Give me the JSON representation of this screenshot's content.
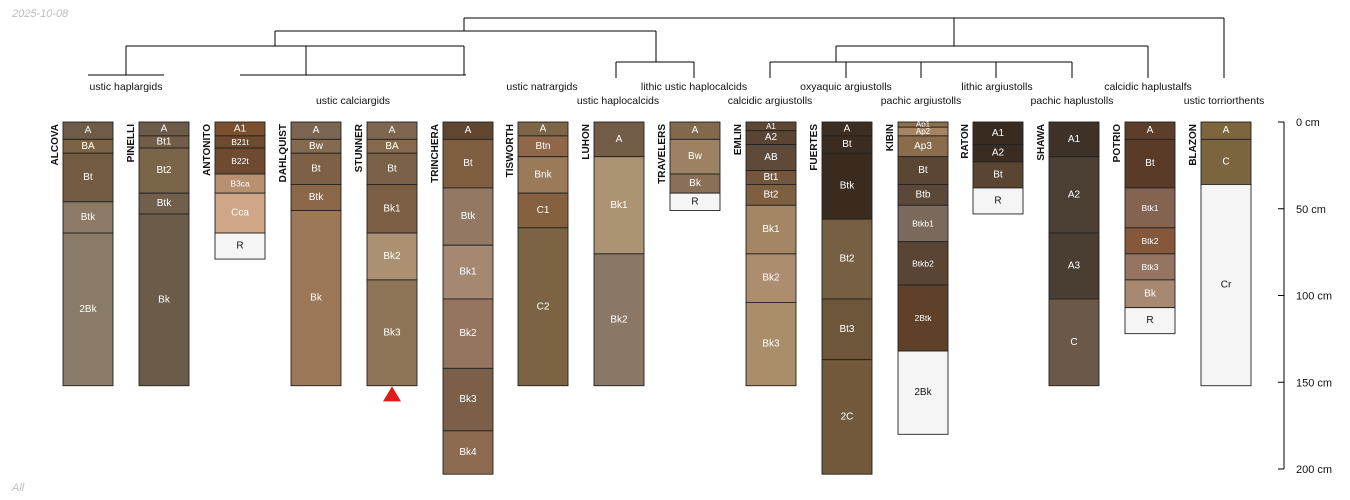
{
  "date_label": "2025-10-08",
  "footer_label": "All",
  "chart_data": {
    "type": "soil-profile-sketch",
    "title": "",
    "depth_unit": "cm",
    "depth_range": [
      0,
      200
    ],
    "depth_ticks": [
      {
        "value": 0,
        "label": "0 cm"
      },
      {
        "value": 50,
        "label": "50 cm"
      },
      {
        "value": 100,
        "label": "100 cm"
      },
      {
        "value": 150,
        "label": "150 cm"
      },
      {
        "value": 200,
        "label": "200 cm"
      }
    ],
    "taxonomy_labels": [
      {
        "text": "ustic haplargids"
      },
      {
        "text": "ustic calciargids"
      },
      {
        "text": "ustic natrargids"
      },
      {
        "text": "ustic haplocalcids"
      },
      {
        "text": "lithic ustic haplocalcids"
      },
      {
        "text": "calcidic argiustolls"
      },
      {
        "text": "oxyaquic argiustolls"
      },
      {
        "text": "pachic argiustolls"
      },
      {
        "text": "lithic argiustolls"
      },
      {
        "text": "pachic haplustolls"
      },
      {
        "text": "calcidic haplustalfs"
      },
      {
        "text": "ustic torriorthents"
      }
    ],
    "profiles": [
      {
        "name": "ALCOVA",
        "horizons": [
          {
            "name": "A",
            "top": 0,
            "bottom": 10,
            "color": "#6e5b48"
          },
          {
            "name": "BA",
            "top": 10,
            "bottom": 18,
            "color": "#7b6344"
          },
          {
            "name": "Bt",
            "top": 18,
            "bottom": 46,
            "color": "#735c42"
          },
          {
            "name": "Btk",
            "top": 46,
            "bottom": 64,
            "color": "#8c7a66"
          },
          {
            "name": "2Bk",
            "top": 64,
            "bottom": 152,
            "color": "#8a7a68"
          }
        ]
      },
      {
        "name": "PINELLI",
        "horizons": [
          {
            "name": "A",
            "top": 0,
            "bottom": 8,
            "color": "#6d5b4a"
          },
          {
            "name": "Bt1",
            "top": 8,
            "bottom": 15,
            "color": "#725e48"
          },
          {
            "name": "Bt2",
            "top": 15,
            "bottom": 41,
            "color": "#7b6549"
          },
          {
            "name": "Btk",
            "top": 41,
            "bottom": 53,
            "color": "#6f5f4c"
          },
          {
            "name": "Bk",
            "top": 53,
            "bottom": 152,
            "color": "#6a5c48"
          }
        ]
      },
      {
        "name": "ANTONITO",
        "horizons": [
          {
            "name": "A1",
            "top": 0,
            "bottom": 8,
            "color": "#7a4f2e"
          },
          {
            "name": "B21t",
            "top": 8,
            "bottom": 15,
            "color": "#6e4a30"
          },
          {
            "name": "B22t",
            "top": 15,
            "bottom": 30,
            "color": "#6e4a30"
          },
          {
            "name": "B3ca",
            "top": 30,
            "bottom": 41,
            "color": "#b79170"
          },
          {
            "name": "Cca",
            "top": 41,
            "bottom": 64,
            "color": "#d0a688"
          },
          {
            "name": "R",
            "top": 64,
            "bottom": 79,
            "color": "#f5f5f5"
          }
        ]
      },
      {
        "name": "DAHLQUIST",
        "horizons": [
          {
            "name": "A",
            "top": 0,
            "bottom": 10,
            "color": "#7a6552"
          },
          {
            "name": "Bw",
            "top": 10,
            "bottom": 18,
            "color": "#846a4f"
          },
          {
            "name": "Bt",
            "top": 18,
            "bottom": 36,
            "color": "#7d6046"
          },
          {
            "name": "Btk",
            "top": 36,
            "bottom": 51,
            "color": "#8a6749"
          },
          {
            "name": "Bk",
            "top": 51,
            "bottom": 152,
            "color": "#9c7858"
          }
        ]
      },
      {
        "name": "STUNNER",
        "horizons": [
          {
            "name": "A",
            "top": 0,
            "bottom": 10,
            "color": "#7e6650"
          },
          {
            "name": "BA",
            "top": 10,
            "bottom": 18,
            "color": "#86694b"
          },
          {
            "name": "Bt",
            "top": 18,
            "bottom": 36,
            "color": "#7a6147"
          },
          {
            "name": "Bk1",
            "top": 36,
            "bottom": 64,
            "color": "#7b5e44"
          },
          {
            "name": "Bk2",
            "top": 64,
            "bottom": 91,
            "color": "#ac9072"
          },
          {
            "name": "Bk3",
            "top": 91,
            "bottom": 152,
            "color": "#8f7558"
          }
        ]
      },
      {
        "name": "TRINCHERA",
        "horizons": [
          {
            "name": "A",
            "top": 0,
            "bottom": 10,
            "color": "#5e4631"
          },
          {
            "name": "Bt",
            "top": 10,
            "bottom": 38,
            "color": "#7e5d40"
          },
          {
            "name": "Btk",
            "top": 38,
            "bottom": 71,
            "color": "#937963"
          },
          {
            "name": "Bk1",
            "top": 71,
            "bottom": 102,
            "color": "#a48872"
          },
          {
            "name": "Bk2",
            "top": 102,
            "bottom": 142,
            "color": "#967560"
          },
          {
            "name": "Bk3",
            "top": 142,
            "bottom": 178,
            "color": "#7c5f49"
          },
          {
            "name": "Bk4",
            "top": 178,
            "bottom": 203,
            "color": "#8d6b50"
          }
        ]
      },
      {
        "name": "TISWORTH",
        "horizons": [
          {
            "name": "A",
            "top": 0,
            "bottom": 8,
            "color": "#7d6549"
          },
          {
            "name": "Btn",
            "top": 8,
            "bottom": 20,
            "color": "#8e6848"
          },
          {
            "name": "Bnk",
            "top": 20,
            "bottom": 41,
            "color": "#9b7a5a"
          },
          {
            "name": "C1",
            "top": 41,
            "bottom": 61,
            "color": "#85613f"
          },
          {
            "name": "C2",
            "top": 61,
            "bottom": 152,
            "color": "#7b6344"
          }
        ]
      },
      {
        "name": "LUHON",
        "horizons": [
          {
            "name": "A",
            "top": 0,
            "bottom": 20,
            "color": "#735c48"
          },
          {
            "name": "Bk1",
            "top": 20,
            "bottom": 76,
            "color": "#ab9473"
          },
          {
            "name": "Bk2",
            "top": 76,
            "bottom": 152,
            "color": "#8b7766"
          }
        ]
      },
      {
        "name": "TRAVELERS",
        "horizons": [
          {
            "name": "A",
            "top": 0,
            "bottom": 10,
            "color": "#82694d"
          },
          {
            "name": "Bw",
            "top": 10,
            "bottom": 30,
            "color": "#9c8262"
          },
          {
            "name": "Bk",
            "top": 30,
            "bottom": 41,
            "color": "#8a7058"
          },
          {
            "name": "R",
            "top": 41,
            "bottom": 51,
            "color": "#f5f5f5"
          }
        ]
      },
      {
        "name": "EMLIN",
        "horizons": [
          {
            "name": "A1",
            "top": 0,
            "bottom": 5,
            "color": "#5f4736"
          },
          {
            "name": "A2",
            "top": 5,
            "bottom": 13,
            "color": "#5a4434"
          },
          {
            "name": "AB",
            "top": 13,
            "bottom": 28,
            "color": "#5f4a3a"
          },
          {
            "name": "Bt1",
            "top": 28,
            "bottom": 36,
            "color": "#72573e"
          },
          {
            "name": "Bt2",
            "top": 36,
            "bottom": 48,
            "color": "#7e6041"
          },
          {
            "name": "Bk1",
            "top": 48,
            "bottom": 76,
            "color": "#a48665"
          },
          {
            "name": "Bk2",
            "top": 76,
            "bottom": 104,
            "color": "#ad8d70"
          },
          {
            "name": "Bk3",
            "top": 104,
            "bottom": 152,
            "color": "#a88e69"
          }
        ]
      },
      {
        "name": "FUERTES",
        "horizons": [
          {
            "name": "A",
            "top": 0,
            "bottom": 8,
            "color": "#3e2e22"
          },
          {
            "name": "Bt",
            "top": 8,
            "bottom": 18,
            "color": "#3c2c20"
          },
          {
            "name": "Btk",
            "top": 18,
            "bottom": 56,
            "color": "#3b2b1f"
          },
          {
            "name": "Bt2",
            "top": 56,
            "bottom": 102,
            "color": "#775f44"
          },
          {
            "name": "Bt3",
            "top": 102,
            "bottom": 137,
            "color": "#6d5639"
          },
          {
            "name": "2C",
            "top": 137,
            "bottom": 203,
            "color": "#73593c"
          }
        ]
      },
      {
        "name": "KIBIN",
        "horizons": [
          {
            "name": "Ap1",
            "top": 0,
            "bottom": 3,
            "color": "#8d6f4e"
          },
          {
            "name": "Ap2",
            "top": 3,
            "bottom": 8,
            "color": "#a48462"
          },
          {
            "name": "Ap3",
            "top": 8,
            "bottom": 20,
            "color": "#8a6b4c"
          },
          {
            "name": "Bt",
            "top": 20,
            "bottom": 36,
            "color": "#5b4633"
          },
          {
            "name": "Btb",
            "top": 36,
            "bottom": 48,
            "color": "#5b4838"
          },
          {
            "name": "Btkb1",
            "top": 48,
            "bottom": 69,
            "color": "#7a6a5c"
          },
          {
            "name": "Btkb2",
            "top": 69,
            "bottom": 94,
            "color": "#5a4534"
          },
          {
            "name": "2Btk",
            "top": 94,
            "bottom": 132,
            "color": "#5f4028"
          },
          {
            "name": "2Bk",
            "top": 132,
            "bottom": 180,
            "color": "#f5f5f5"
          }
        ]
      },
      {
        "name": "RATON",
        "horizons": [
          {
            "name": "A1",
            "top": 0,
            "bottom": 13,
            "color": "#3a2b20"
          },
          {
            "name": "A2",
            "top": 13,
            "bottom": 23,
            "color": "#3b2c21"
          },
          {
            "name": "Bt",
            "top": 23,
            "bottom": 38,
            "color": "#5a4533"
          },
          {
            "name": "R",
            "top": 38,
            "bottom": 53,
            "color": "#f5f5f5"
          }
        ]
      },
      {
        "name": "SHAWA",
        "horizons": [
          {
            "name": "A1",
            "top": 0,
            "bottom": 20,
            "color": "#3e3128"
          },
          {
            "name": "A2",
            "top": 20,
            "bottom": 64,
            "color": "#4b3e33"
          },
          {
            "name": "A3",
            "top": 64,
            "bottom": 102,
            "color": "#4a3d32"
          },
          {
            "name": "C",
            "top": 102,
            "bottom": 152,
            "color": "#6b5848"
          }
        ]
      },
      {
        "name": "POTRIO",
        "horizons": [
          {
            "name": "A",
            "top": 0,
            "bottom": 10,
            "color": "#5c3f2b"
          },
          {
            "name": "Bt",
            "top": 10,
            "bottom": 38,
            "color": "#5a3b27"
          },
          {
            "name": "Btk1",
            "top": 38,
            "bottom": 61,
            "color": "#846451"
          },
          {
            "name": "Btk2",
            "top": 61,
            "bottom": 76,
            "color": "#85583b"
          },
          {
            "name": "Btk3",
            "top": 76,
            "bottom": 91,
            "color": "#957561"
          },
          {
            "name": "Bk",
            "top": 91,
            "bottom": 107,
            "color": "#a78870"
          },
          {
            "name": "R",
            "top": 107,
            "bottom": 122,
            "color": "#f5f5f5"
          }
        ]
      },
      {
        "name": "BLAZON",
        "horizons": [
          {
            "name": "A",
            "top": 0,
            "bottom": 10,
            "color": "#7d653d"
          },
          {
            "name": "C",
            "top": 10,
            "bottom": 36,
            "color": "#7b653f"
          },
          {
            "name": "Cr",
            "top": 36,
            "bottom": 152,
            "color": "#f5f5f5"
          }
        ]
      }
    ],
    "markers": [
      {
        "profile": "STUNNER",
        "depth": 157,
        "shape": "triangle",
        "color": "#e31a1c"
      }
    ]
  }
}
